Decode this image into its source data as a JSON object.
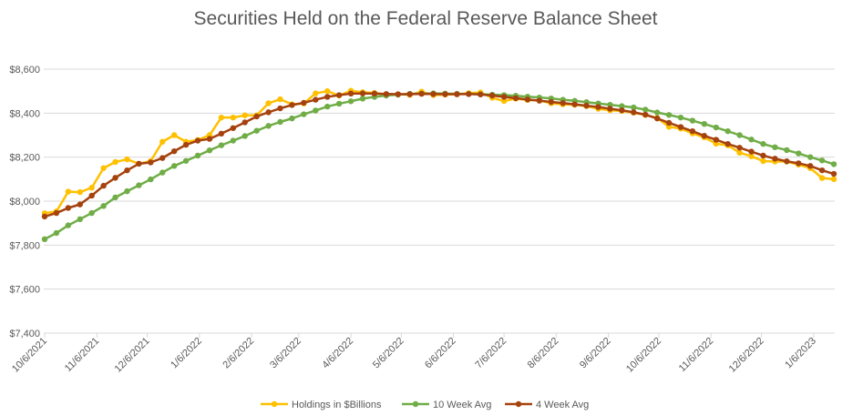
{
  "chart_data": {
    "type": "line",
    "title": "Securities Held on the Federal Reserve Balance Sheet",
    "xlabel": "",
    "ylabel": "",
    "ylim": [
      7400,
      8600
    ],
    "yticks": [
      "$7,400",
      "$7,600",
      "$7,800",
      "$8,000",
      "$8,200",
      "$8,400",
      "$8,600"
    ],
    "ytick_values": [
      7400,
      7600,
      7800,
      8000,
      8200,
      8400,
      8600
    ],
    "xticks": [
      "10/6/2021",
      "11/6/2021",
      "12/6/2021",
      "1/6/2022",
      "2/6/2022",
      "3/6/2022",
      "4/6/2022",
      "5/6/2022",
      "6/6/2022",
      "7/6/2022",
      "8/6/2022",
      "9/6/2022",
      "10/6/2022",
      "11/6/2022",
      "12/6/2022",
      "1/6/2023"
    ],
    "xtick_weeks": [
      0,
      4.43,
      8.71,
      13.14,
      17.57,
      21.57,
      26,
      30.29,
      34.71,
      39,
      43.43,
      47.86,
      52.14,
      56.57,
      60.86,
      65.29
    ],
    "x_start": "10/6/2021",
    "x_step": "weekly",
    "grid": true,
    "legend_position": "bottom",
    "series": [
      {
        "name": "Holdings in $Billions",
        "color": "#FFC000",
        "values": [
          7945,
          7953,
          8043,
          8041,
          8061,
          8150,
          8178,
          8190,
          8170,
          8182,
          8270,
          8300,
          8270,
          8278,
          8300,
          8380,
          8380,
          8390,
          8390,
          8445,
          8463,
          8440,
          8444,
          8490,
          8500,
          8480,
          8502,
          8495,
          8492,
          8485,
          8486,
          8483,
          8498,
          8482,
          8484,
          8486,
          8491,
          8494,
          8470,
          8455,
          8466,
          8460,
          8457,
          8445,
          8440,
          8438,
          8432,
          8420,
          8413,
          8410,
          8402,
          8392,
          8378,
          8338,
          8330,
          8308,
          8290,
          8261,
          8254,
          8220,
          8204,
          8182,
          8180,
          8180,
          8166,
          8150,
          8105,
          8100
        ]
      },
      {
        "name": "10 Week Avg",
        "color": "#70AD47",
        "values": [
          7827,
          7855,
          7890,
          7918,
          7946,
          7978,
          8017,
          8045,
          8072,
          8099,
          8130,
          8160,
          8183,
          8207,
          8231,
          8254,
          8275,
          8296,
          8320,
          8342,
          8360,
          8376,
          8395,
          8412,
          8430,
          8443,
          8454,
          8466,
          8474,
          8480,
          8484,
          8488,
          8489,
          8490,
          8489,
          8488,
          8487,
          8486,
          8484,
          8482,
          8479,
          8475,
          8471,
          8467,
          8461,
          8456,
          8450,
          8444,
          8438,
          8432,
          8426,
          8416,
          8403,
          8392,
          8380,
          8366,
          8351,
          8335,
          8318,
          8300,
          8280,
          8260,
          8245,
          8232,
          8217,
          8200,
          8185,
          8168
        ]
      },
      {
        "name": "4 Week Avg",
        "color": "#A5420E",
        "values": [
          7930,
          7946,
          7969,
          7985,
          8025,
          8070,
          8106,
          8140,
          8170,
          8176,
          8196,
          8227,
          8256,
          8275,
          8283,
          8307,
          8332,
          8358,
          8385,
          8404,
          8422,
          8437,
          8447,
          8461,
          8474,
          8482,
          8489,
          8490,
          8489,
          8487,
          8486,
          8486,
          8488,
          8487,
          8486,
          8486,
          8487,
          8485,
          8480,
          8474,
          8468,
          8462,
          8457,
          8451,
          8446,
          8440,
          8434,
          8428,
          8420,
          8413,
          8404,
          8393,
          8376,
          8356,
          8337,
          8318,
          8297,
          8279,
          8260,
          8243,
          8225,
          8207,
          8193,
          8181,
          8172,
          8160,
          8140,
          8124
        ]
      }
    ]
  }
}
